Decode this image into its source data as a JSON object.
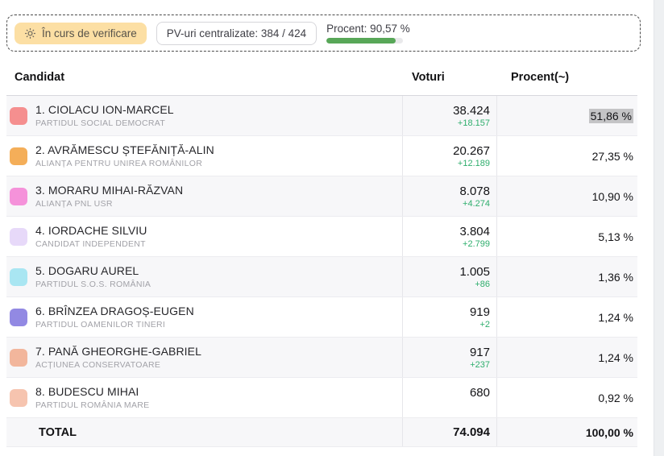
{
  "header": {
    "status_badge": "În curs de verificare",
    "pv_label": "PV-uri centralizate: 384 / 424",
    "percent_label": "Procent: 90,57 %",
    "percent_value": 90.57,
    "progress_color": "#58a758",
    "badge_bg": "#fcdfa4"
  },
  "table": {
    "columns": {
      "candidate": "Candidat",
      "votes": "Voturi",
      "percent": "Procent(~)"
    },
    "rows": [
      {
        "name": "1. CIOLACU ION-MARCEL",
        "party": "PARTIDUL SOCIAL DEMOCRAT",
        "color": "#f58f8f",
        "votes": "38.424",
        "delta": "+18.157",
        "percent": "51,86 %",
        "percent_bg": "#c4c4c6"
      },
      {
        "name": "2. AVRĂMESCU ȘTEFĂNIȚĂ-ALIN",
        "party": "ALIANȚA PENTRU UNIREA ROMÂNILOR",
        "color": "#f4ae59",
        "votes": "20.267",
        "delta": "+12.189",
        "percent": "27,35 %"
      },
      {
        "name": "3. MORARU MIHAI-RĂZVAN",
        "party": "ALIANȚA PNL USR",
        "color": "#f592da",
        "votes": "8.078",
        "delta": "+4.274",
        "percent": "10,90 %"
      },
      {
        "name": "4. IORDACHE SILVIU",
        "party": "CANDIDAT INDEPENDENT",
        "color": "#e7d9f9",
        "votes": "3.804",
        "delta": "+2.799",
        "percent": "5,13 %"
      },
      {
        "name": "5. DOGARU AUREL",
        "party": "PARTIDUL S.O.S. ROMÂNIA",
        "color": "#a9e6f2",
        "votes": "1.005",
        "delta": "+86",
        "percent": "1,36 %"
      },
      {
        "name": "6. BRÎNZEA DRAGOȘ-EUGEN",
        "party": "PARTIDUL OAMENILOR TINERI",
        "color": "#9289e3",
        "votes": "919",
        "delta": "+2",
        "percent": "1,24 %"
      },
      {
        "name": "7. PANĂ GHEORGHE-GABRIEL",
        "party": "ACȚIUNEA CONSERVATOARE",
        "color": "#f2b69c",
        "votes": "917",
        "delta": "+237",
        "percent": "1,24 %"
      },
      {
        "name": "8. BUDESCU MIHAI",
        "party": "PARTIDUL ROMÂNIA MARE",
        "color": "#f6c4af",
        "votes": "680",
        "delta": "",
        "percent": "0,92 %"
      }
    ],
    "total": {
      "label": "TOTAL",
      "votes": "74.094",
      "percent": "100,00 %"
    }
  }
}
